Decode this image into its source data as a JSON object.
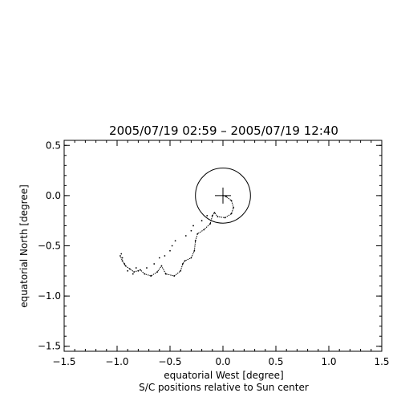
{
  "chart_data": {
    "type": "scatter",
    "title": "2005/07/19 02:59 – 2005/07/19 12:40",
    "xlabel": "equatorial West [degree]",
    "ylabel": "equatorial North [degree]",
    "caption": "S/C positions relative to Sun center",
    "xlim": [
      -1.5,
      1.5
    ],
    "ylim": [
      -1.55,
      0.55
    ],
    "xticks": [
      -1.5,
      -1.0,
      -0.5,
      0.0,
      0.5,
      1.0,
      1.5
    ],
    "xtick_labels": [
      "−1.5",
      "−1.0",
      "−0.5",
      "0.0",
      "0.5",
      "1.0",
      "1.5"
    ],
    "yticks": [
      0.5,
      0.0,
      -0.5,
      -1.0,
      -1.5
    ],
    "ytick_labels": [
      "0.5",
      "0.0",
      "−0.5",
      "−1.0",
      "−1.5"
    ],
    "sun": {
      "center": [
        0.0,
        0.0
      ],
      "radius_deg": 0.26
    },
    "path": [
      [
        0.0,
        0.0
      ],
      [
        0.03,
        -0.01
      ],
      [
        0.08,
        -0.05
      ],
      [
        0.1,
        -0.12
      ],
      [
        0.08,
        -0.18
      ],
      [
        0.02,
        -0.22
      ],
      [
        -0.05,
        -0.21
      ],
      [
        -0.08,
        -0.17
      ],
      [
        -0.1,
        -0.2
      ],
      [
        -0.12,
        -0.28
      ],
      [
        -0.18,
        -0.34
      ],
      [
        -0.24,
        -0.38
      ],
      [
        -0.26,
        -0.45
      ],
      [
        -0.27,
        -0.55
      ],
      [
        -0.3,
        -0.62
      ],
      [
        -0.36,
        -0.65
      ],
      [
        -0.38,
        -0.68
      ],
      [
        -0.4,
        -0.75
      ],
      [
        -0.46,
        -0.8
      ],
      [
        -0.54,
        -0.78
      ],
      [
        -0.58,
        -0.7
      ],
      [
        -0.62,
        -0.76
      ],
      [
        -0.68,
        -0.8
      ],
      [
        -0.74,
        -0.78
      ],
      [
        -0.78,
        -0.74
      ],
      [
        -0.84,
        -0.76
      ],
      [
        -0.88,
        -0.73
      ],
      [
        -0.92,
        -0.7
      ],
      [
        -0.95,
        -0.65
      ],
      [
        -0.97,
        -0.6
      ]
    ],
    "scatter": [
      [
        -0.15,
        -0.2
      ],
      [
        -0.2,
        -0.25
      ],
      [
        -0.28,
        -0.3
      ],
      [
        -0.3,
        -0.35
      ],
      [
        -0.35,
        -0.4
      ],
      [
        -0.45,
        -0.45
      ],
      [
        -0.48,
        -0.5
      ],
      [
        -0.5,
        -0.55
      ],
      [
        -0.55,
        -0.6
      ],
      [
        -0.6,
        -0.62
      ],
      [
        -0.65,
        -0.68
      ],
      [
        -0.72,
        -0.72
      ],
      [
        -0.8,
        -0.75
      ],
      [
        -0.82,
        -0.72
      ],
      [
        -0.85,
        -0.78
      ],
      [
        -0.9,
        -0.75
      ],
      [
        -0.93,
        -0.68
      ],
      [
        -0.95,
        -0.62
      ],
      [
        -0.96,
        -0.58
      ]
    ]
  }
}
